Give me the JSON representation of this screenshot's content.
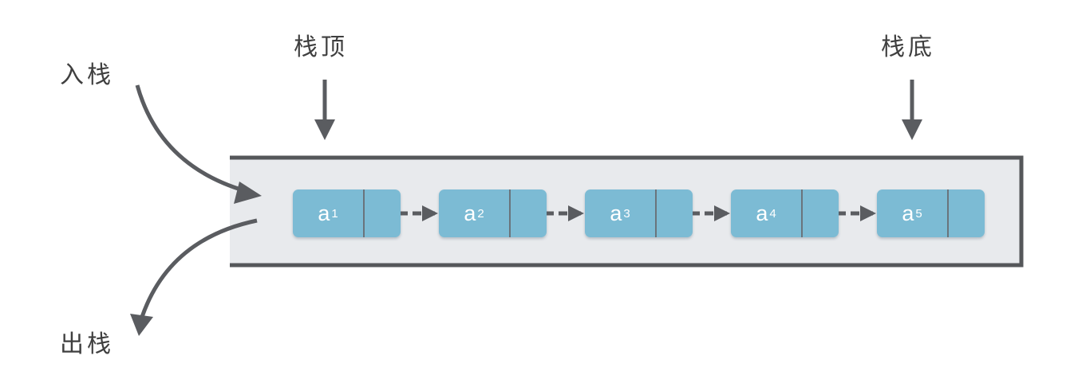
{
  "labels": {
    "push": "入栈",
    "pop": "出栈",
    "top": "栈顶",
    "bottom": "栈底"
  },
  "nodes": [
    {
      "letter": "a",
      "index": "1"
    },
    {
      "letter": "a",
      "index": "2"
    },
    {
      "letter": "a",
      "index": "3"
    },
    {
      "letter": "a",
      "index": "4"
    },
    {
      "letter": "a",
      "index": "5"
    }
  ],
  "colors": {
    "node_fill": "#7cbbd4",
    "container_fill": "#e8eaed",
    "border": "#55575a",
    "arrow": "#5a5c60",
    "text": "#3f3f3f"
  }
}
